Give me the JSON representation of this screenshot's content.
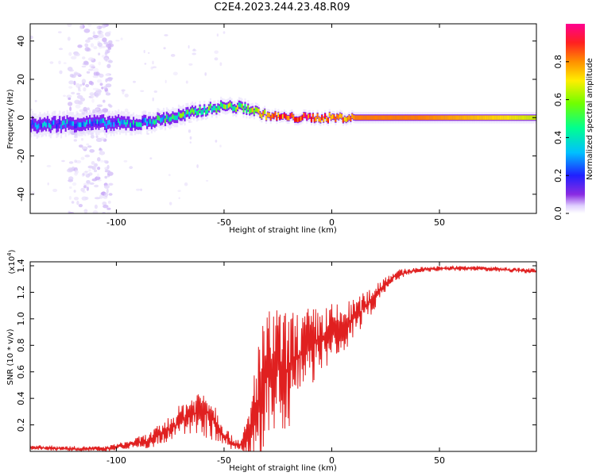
{
  "figure": {
    "title": "C2E4.2023.244.23.48.R09"
  },
  "chart_data": [
    {
      "type": "heatmap",
      "xlabel": "Height of straight line (km)",
      "ylabel": "Frequency (Hz)",
      "xlim": [
        -140,
        95
      ],
      "ylim": [
        -50,
        49
      ],
      "x_ticks": [
        -100,
        -50,
        0,
        50
      ],
      "y_ticks": [
        -40,
        -20,
        0,
        20,
        40
      ],
      "colorbar": {
        "label": "Normalized spectral amplitude",
        "range": [
          0.0,
          1.0
        ],
        "ticks": [
          "0.0",
          "0.2",
          "0.4",
          "0.6",
          "0.8"
        ],
        "colormap": [
          "#ffffff",
          "#d8c8f8",
          "#8020f0",
          "#2020ff",
          "#00c8ff",
          "#00ff80",
          "#80ff00",
          "#ffe000",
          "#ff8000",
          "#ff0000",
          "#ff00a0"
        ]
      },
      "ridge": {
        "x": [
          -140,
          -120,
          -100,
          -90,
          -80,
          -70,
          -60,
          -50,
          -40,
          -30,
          -20,
          -10,
          0,
          10,
          20,
          40,
          60,
          80,
          95
        ],
        "freq_hz": [
          -4,
          -3,
          -3,
          -3,
          -1,
          1,
          4,
          6,
          5,
          1,
          0,
          0,
          0,
          0,
          0,
          0,
          0,
          0,
          0
        ],
        "amplitude": [
          0.35,
          0.35,
          0.35,
          0.4,
          0.45,
          0.5,
          0.55,
          0.55,
          0.6,
          0.75,
          0.85,
          0.85,
          0.8,
          0.8,
          0.8,
          0.8,
          0.75,
          0.7,
          0.65
        ],
        "band_halfwidth_hz": [
          6,
          6,
          6,
          5,
          5,
          5,
          4,
          4,
          4,
          3,
          3,
          3,
          3,
          3,
          3,
          3,
          3,
          3,
          3
        ]
      },
      "noise_region_x": [
        -122,
        -102
      ],
      "noise_extent_hz": [
        -50,
        49
      ]
    },
    {
      "type": "line",
      "xlabel": "Height of straight line (km)",
      "ylabel": "SNR (10 * v/v)",
      "y_scale_label": "(x10",
      "y_scale_exponent": "4",
      "y_scale_suffix": ")",
      "xlim": [
        -140,
        95
      ],
      "ylim": [
        0.0,
        1.43
      ],
      "x_ticks": [
        -100,
        -50,
        0,
        50
      ],
      "y_ticks": [
        0.2,
        0.4,
        0.6,
        0.8,
        1.0,
        1.2,
        1.4
      ],
      "color": "#e02020",
      "series": [
        {
          "x": [
            -140,
            -120,
            -105,
            -95,
            -85,
            -75,
            -68,
            -62,
            -58,
            -54,
            -50,
            -46,
            -42,
            -38,
            -36,
            -34,
            -30,
            -26,
            -22,
            -20,
            -18,
            -15,
            -10,
            -5,
            0,
            5,
            10,
            15,
            20,
            25,
            30,
            40,
            50,
            60,
            70,
            80,
            95
          ],
          "y": [
            0.03,
            0.02,
            0.02,
            0.05,
            0.08,
            0.17,
            0.26,
            0.3,
            0.3,
            0.22,
            0.12,
            0.06,
            0.05,
            0.1,
            0.25,
            0.4,
            0.55,
            0.62,
            0.6,
            0.62,
            0.67,
            0.72,
            0.79,
            0.84,
            0.87,
            0.92,
            1.0,
            1.08,
            1.17,
            1.27,
            1.33,
            1.37,
            1.38,
            1.38,
            1.38,
            1.37,
            1.36
          ],
          "spread": [
            0.02,
            0.02,
            0.02,
            0.03,
            0.06,
            0.1,
            0.14,
            0.17,
            0.2,
            0.15,
            0.09,
            0.05,
            0.05,
            0.25,
            0.4,
            0.5,
            0.5,
            0.5,
            0.45,
            0.45,
            0.4,
            0.35,
            0.3,
            0.25,
            0.25,
            0.2,
            0.15,
            0.12,
            0.1,
            0.06,
            0.04,
            0.02,
            0.02,
            0.02,
            0.02,
            0.02,
            0.02
          ]
        }
      ]
    }
  ]
}
